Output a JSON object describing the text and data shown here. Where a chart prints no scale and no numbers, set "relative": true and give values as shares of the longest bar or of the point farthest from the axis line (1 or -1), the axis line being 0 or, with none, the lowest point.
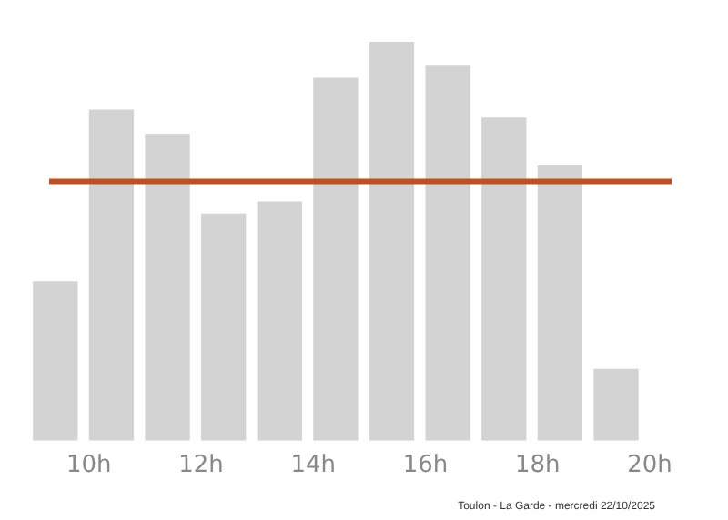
{
  "chart_data": {
    "type": "bar",
    "relative": true,
    "x": [
      9.4,
      10.4,
      11.4,
      12.4,
      13.4,
      14.4,
      15.4,
      16.4,
      17.4,
      18.4,
      19.4
    ],
    "values": [
      0.4,
      0.83,
      0.77,
      0.57,
      0.6,
      0.91,
      1,
      0.94,
      0.81,
      0.69,
      0.18
    ],
    "color": "#d3d3d3",
    "xlim": [
      8.9,
      20
    ],
    "xticks": [
      {
        "value": 10,
        "label": "10h"
      },
      {
        "value": 12,
        "label": "12h"
      },
      {
        "value": 14,
        "label": "14h"
      },
      {
        "value": 16,
        "label": "16h"
      },
      {
        "value": 18,
        "label": "18h"
      },
      {
        "value": 20,
        "label": "20h"
      }
    ],
    "ref_lines": [
      {
        "axis": "y",
        "value": 0.65,
        "color": "#c0501c"
      }
    ],
    "annotations": [
      "Toulon - La Garde - mercredi 22/10/2025"
    ],
    "grid": false,
    "legend": false
  }
}
